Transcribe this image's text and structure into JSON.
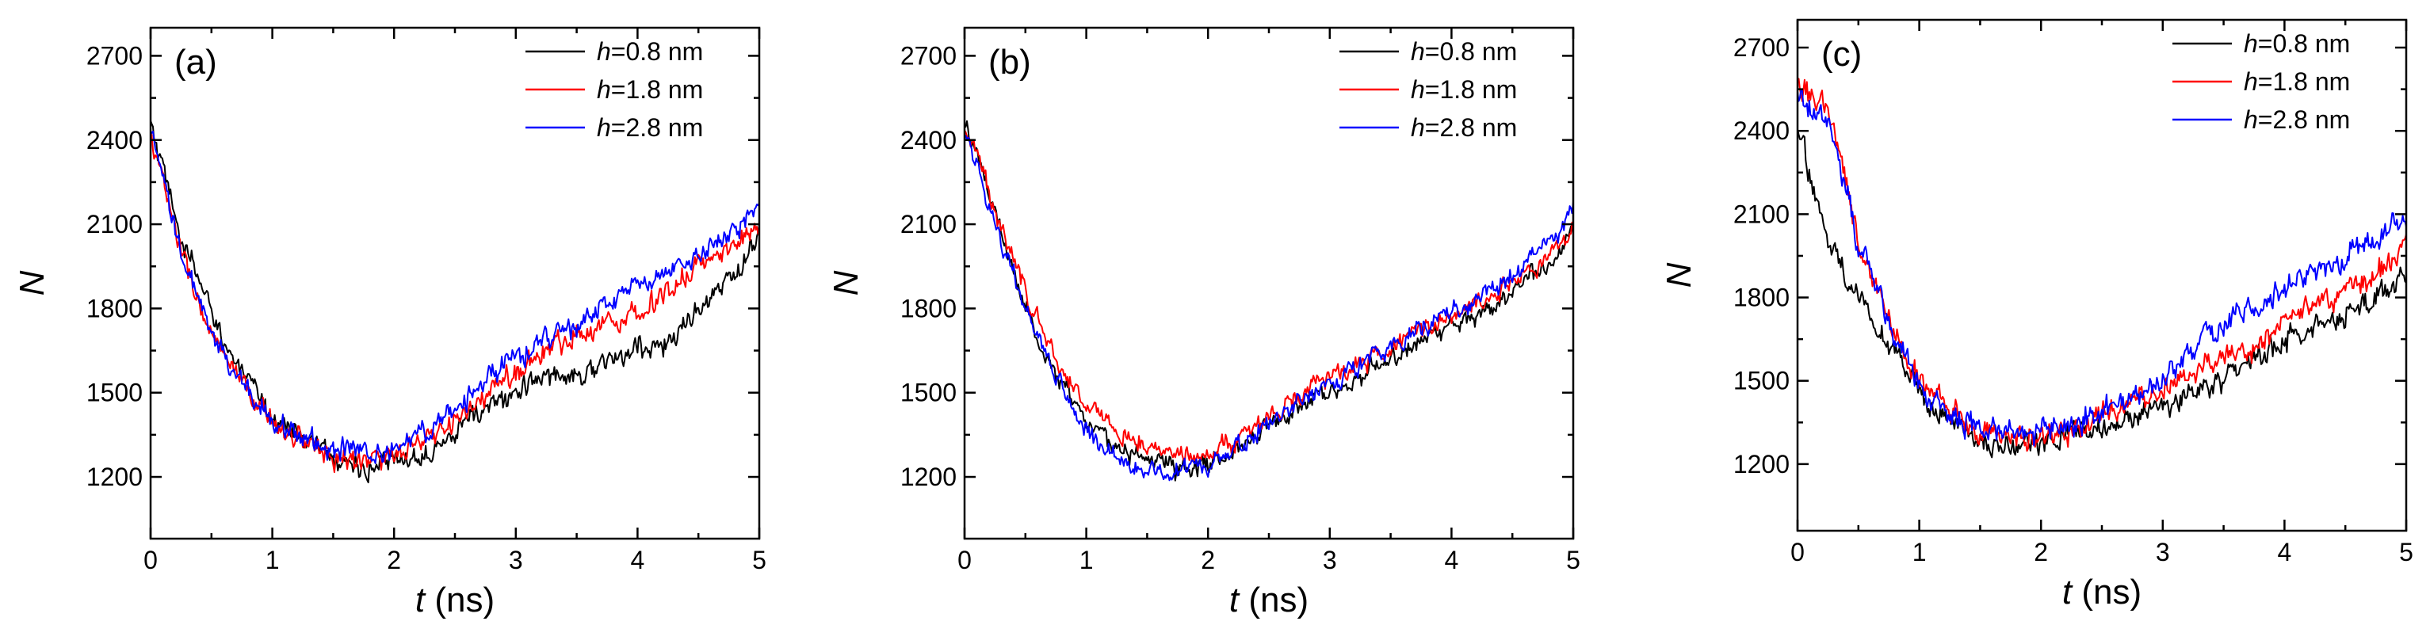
{
  "chart_data": [
    {
      "type": "line",
      "panel_label": "(a)",
      "xlabel": "t (ns)",
      "ylabel": "N",
      "xlim": [
        0,
        5
      ],
      "ylim": [
        980,
        2800
      ],
      "xticks": [
        0,
        1,
        2,
        3,
        4,
        5
      ],
      "yticks": [
        1200,
        1500,
        1800,
        2100,
        2400,
        2700
      ],
      "legend_position": "top-right",
      "series": [
        {
          "name": "h=0.8 nm",
          "symbol": "h",
          "label_rest": "=0.8 nm",
          "color": "#000000",
          "noise": 28,
          "x": [
            0,
            0.25,
            0.5,
            0.75,
            1.0,
            1.25,
            1.5,
            1.75,
            2.0,
            2.25,
            2.5,
            2.75,
            3.0,
            3.25,
            3.5,
            3.75,
            4.0,
            4.25,
            4.5,
            4.75,
            5.0
          ],
          "values": [
            2450,
            2050,
            1790,
            1560,
            1420,
            1340,
            1270,
            1230,
            1250,
            1290,
            1370,
            1440,
            1500,
            1560,
            1570,
            1600,
            1660,
            1670,
            1800,
            1890,
            2050
          ]
        },
        {
          "name": "h=1.8 nm",
          "symbol": "h",
          "label_rest": "=1.8 nm",
          "color": "#ff0000",
          "noise": 28,
          "x": [
            0,
            0.25,
            0.5,
            0.75,
            1.0,
            1.25,
            1.5,
            1.75,
            2.0,
            2.25,
            2.5,
            2.75,
            3.0,
            3.25,
            3.5,
            3.75,
            4.0,
            4.25,
            4.5,
            4.75,
            5.0
          ],
          "values": [
            2420,
            2000,
            1700,
            1520,
            1400,
            1330,
            1270,
            1260,
            1270,
            1320,
            1400,
            1480,
            1580,
            1650,
            1710,
            1750,
            1790,
            1860,
            1950,
            2010,
            2110
          ]
        },
        {
          "name": "h=2.8 nm",
          "symbol": "h",
          "label_rest": "=2.8 nm",
          "color": "#0000ff",
          "noise": 28,
          "x": [
            0,
            0.25,
            0.5,
            0.75,
            1.0,
            1.25,
            1.5,
            1.75,
            2.0,
            2.25,
            2.5,
            2.75,
            3.0,
            3.25,
            3.5,
            3.75,
            4.0,
            4.25,
            4.5,
            4.75,
            5.0
          ],
          "values": [
            2420,
            2000,
            1700,
            1530,
            1410,
            1340,
            1300,
            1290,
            1300,
            1360,
            1440,
            1540,
            1630,
            1690,
            1740,
            1810,
            1880,
            1920,
            1990,
            2070,
            2160
          ]
        }
      ]
    },
    {
      "type": "line",
      "panel_label": "(b)",
      "xlabel": "t (ns)",
      "ylabel": "N",
      "xlim": [
        0,
        5
      ],
      "ylim": [
        980,
        2800
      ],
      "xticks": [
        0,
        1,
        2,
        3,
        4,
        5
      ],
      "yticks": [
        1200,
        1500,
        1800,
        2100,
        2400,
        2700
      ],
      "legend_position": "top-right",
      "series": [
        {
          "name": "h=0.8 nm",
          "symbol": "h",
          "label_rest": "=0.8 nm",
          "color": "#000000",
          "noise": 24,
          "x": [
            0,
            0.25,
            0.5,
            0.75,
            1.0,
            1.25,
            1.5,
            1.75,
            2.0,
            2.25,
            2.5,
            2.75,
            3.0,
            3.25,
            3.5,
            3.75,
            4.0,
            4.25,
            4.5,
            4.75,
            5.0
          ],
          "values": [
            2470,
            2150,
            1800,
            1560,
            1400,
            1310,
            1260,
            1230,
            1250,
            1310,
            1390,
            1450,
            1510,
            1560,
            1620,
            1680,
            1740,
            1790,
            1860,
            1950,
            2080
          ]
        },
        {
          "name": "h=1.8 nm",
          "symbol": "h",
          "label_rest": "=1.8 nm",
          "color": "#ff0000",
          "noise": 24,
          "x": [
            0,
            0.25,
            0.5,
            0.75,
            1.0,
            1.25,
            1.5,
            1.75,
            2.0,
            2.25,
            2.5,
            2.75,
            3.0,
            3.25,
            3.5,
            3.75,
            4.0,
            4.25,
            4.5,
            4.75,
            5.0
          ],
          "values": [
            2460,
            2160,
            1860,
            1620,
            1460,
            1360,
            1310,
            1290,
            1290,
            1330,
            1410,
            1490,
            1550,
            1600,
            1660,
            1720,
            1780,
            1830,
            1890,
            1970,
            2080
          ]
        },
        {
          "name": "h=2.8 nm",
          "symbol": "h",
          "label_rest": "=2.8 nm",
          "color": "#0000ff",
          "noise": 24,
          "x": [
            0,
            0.25,
            0.5,
            0.75,
            1.0,
            1.25,
            1.5,
            1.75,
            2.0,
            2.25,
            2.5,
            2.75,
            3.0,
            3.25,
            3.5,
            3.75,
            4.0,
            4.25,
            4.5,
            4.75,
            5.0
          ],
          "values": [
            2440,
            2100,
            1800,
            1550,
            1360,
            1270,
            1220,
            1220,
            1250,
            1310,
            1390,
            1470,
            1540,
            1600,
            1670,
            1730,
            1790,
            1850,
            1920,
            2020,
            2140
          ]
        }
      ]
    },
    {
      "type": "line",
      "panel_label": "(c)",
      "xlabel": "t (ns)",
      "ylabel": "N",
      "xlim": [
        0,
        5
      ],
      "ylim": [
        960,
        2800
      ],
      "xticks": [
        0,
        1,
        2,
        3,
        4,
        5
      ],
      "yticks": [
        1200,
        1500,
        1800,
        2100,
        2400,
        2700
      ],
      "legend_position": "top-right",
      "series": [
        {
          "name": "h=0.8 nm",
          "symbol": "h",
          "label_rest": "=0.8 nm",
          "color": "#000000",
          "noise": 30,
          "x": [
            0,
            0.25,
            0.5,
            0.75,
            1.0,
            1.25,
            1.5,
            1.75,
            2.0,
            2.25,
            2.5,
            2.75,
            3.0,
            3.25,
            3.5,
            3.75,
            4.0,
            4.25,
            4.5,
            4.75,
            5.0
          ],
          "values": [
            2420,
            2000,
            1800,
            1620,
            1460,
            1360,
            1280,
            1260,
            1280,
            1300,
            1330,
            1370,
            1400,
            1450,
            1510,
            1580,
            1650,
            1690,
            1730,
            1800,
            1900
          ]
        },
        {
          "name": "h=1.8 nm",
          "symbol": "h",
          "label_rest": "=1.8 nm",
          "color": "#ff0000",
          "noise": 30,
          "x": [
            0,
            0.25,
            0.5,
            0.75,
            1.0,
            1.25,
            1.5,
            1.75,
            2.0,
            2.25,
            2.5,
            2.75,
            3.0,
            3.25,
            3.5,
            3.75,
            4.0,
            4.25,
            4.5,
            4.75,
            5.0
          ],
          "values": [
            2560,
            2500,
            2000,
            1700,
            1520,
            1390,
            1320,
            1300,
            1300,
            1330,
            1380,
            1420,
            1480,
            1530,
            1580,
            1630,
            1710,
            1770,
            1820,
            1880,
            2000
          ]
        },
        {
          "name": "h=2.8 nm",
          "symbol": "h",
          "label_rest": "=2.8 nm",
          "color": "#0000ff",
          "noise": 30,
          "x": [
            0,
            0.25,
            0.5,
            0.75,
            1.0,
            1.25,
            1.5,
            1.75,
            2.0,
            2.25,
            2.5,
            2.75,
            3.0,
            3.25,
            3.5,
            3.75,
            4.0,
            4.25,
            4.5,
            4.75,
            5.0
          ],
          "values": [
            2530,
            2420,
            2000,
            1700,
            1500,
            1380,
            1330,
            1330,
            1330,
            1340,
            1380,
            1440,
            1510,
            1610,
            1700,
            1780,
            1830,
            1890,
            1950,
            2020,
            2100
          ]
        }
      ]
    }
  ]
}
